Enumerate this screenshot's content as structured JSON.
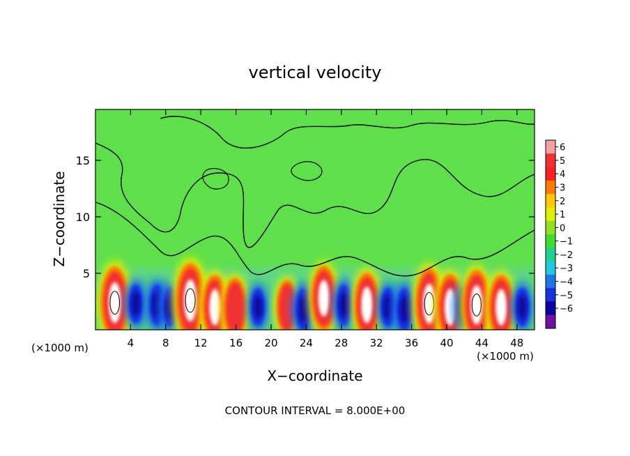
{
  "chart_data": {
    "type": "heatmap",
    "title": "vertical velocity",
    "xlabel": "X−coordinate",
    "ylabel": "Z−coordinate",
    "x_unit_left": "(×1000 m)",
    "x_unit_right": "(×1000 m)",
    "footer": "CONTOUR INTERVAL = 8.000E+00",
    "xlim": [
      0,
      50
    ],
    "ylim": [
      0,
      19.5
    ],
    "xticks": [
      "4",
      "8",
      "12",
      "16",
      "20",
      "24",
      "28",
      "32",
      "36",
      "40",
      "44",
      "48"
    ],
    "xtick_values": [
      4,
      8,
      12,
      16,
      20,
      24,
      28,
      32,
      36,
      40,
      44,
      48
    ],
    "yticks": [
      "5",
      "10",
      "15"
    ],
    "ytick_values": [
      5,
      10,
      15
    ],
    "colorbar": {
      "labels": [
        "6",
        "5",
        "4",
        "3",
        "2",
        "1",
        "0",
        "−1",
        "−2",
        "−3",
        "−4",
        "−5",
        "−6"
      ],
      "bin_colors": [
        "#f4a0a0",
        "#f03030",
        "#ff2020",
        "#ff7a00",
        "#ffc800",
        "#e0f000",
        "#90e020",
        "#40dd30",
        "#20d090",
        "#20c8d8",
        "#1f74e8",
        "#1830e0",
        "#0808a0",
        "#7010a0"
      ]
    },
    "cells": [
      {
        "x": 2.2,
        "z": 2.4,
        "w": 1.2
      },
      {
        "x": 4.6,
        "z": 2.3,
        "w": -0.5
      },
      {
        "x": 7.0,
        "z": 2.2,
        "w": -0.6
      },
      {
        "x": 8.5,
        "z": 2.0,
        "w": -0.5
      },
      {
        "x": 10.8,
        "z": 2.6,
        "w": 1.3
      },
      {
        "x": 13.6,
        "z": 2.0,
        "w": 0.9
      },
      {
        "x": 15.9,
        "z": 1.9,
        "w": 0.75
      },
      {
        "x": 18.5,
        "z": 2.0,
        "w": -0.45
      },
      {
        "x": 21.8,
        "z": 2.0,
        "w": 0.5
      },
      {
        "x": 23.7,
        "z": 1.8,
        "w": -0.7
      },
      {
        "x": 26.0,
        "z": 2.8,
        "w": 0.9
      },
      {
        "x": 28.3,
        "z": 2.2,
        "w": -0.6
      },
      {
        "x": 30.9,
        "z": 2.2,
        "w": 0.9
      },
      {
        "x": 33.3,
        "z": 2.0,
        "w": -0.5
      },
      {
        "x": 35.2,
        "z": 1.8,
        "w": -0.7
      },
      {
        "x": 38.0,
        "z": 2.3,
        "w": 1.15
      },
      {
        "x": 40.4,
        "z": 2.0,
        "w": 0.95
      },
      {
        "x": 42.0,
        "z": 2.0,
        "w": -0.5
      },
      {
        "x": 43.4,
        "z": 2.2,
        "w": 1.1
      },
      {
        "x": 46.2,
        "z": 2.0,
        "w": 0.9
      },
      {
        "x": 48.6,
        "z": 2.0,
        "w": -0.5
      }
    ]
  }
}
